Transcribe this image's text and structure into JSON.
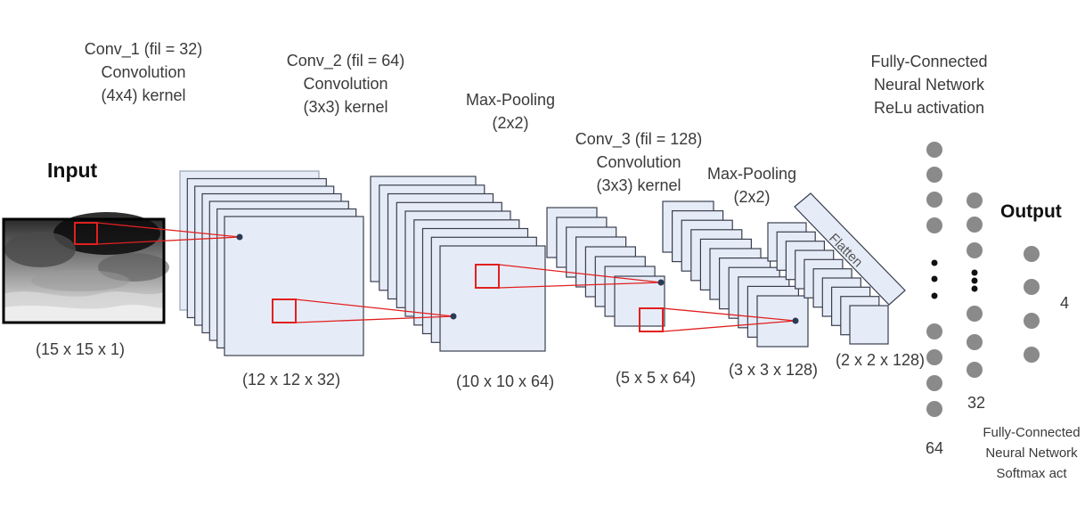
{
  "input": {
    "title": "Input",
    "dims": "(15 x 15 x 1)"
  },
  "conv1": {
    "line1": "Conv_1 (fil = 32)",
    "line2": "Convolution",
    "line3": "(4x4) kernel",
    "dims": "(12 x 12 x 32)"
  },
  "conv2": {
    "line1": "Conv_2 (fil = 64)",
    "line2": "Convolution",
    "line3": "(3x3) kernel",
    "dims": "(10 x 10 x 64)"
  },
  "pool1": {
    "line1": "Max-Pooling",
    "line2": "(2x2)",
    "dims": "(5 x 5 x 64)"
  },
  "conv3": {
    "line1": "Conv_3 (fil = 128)",
    "line2": "Convolution",
    "line3": "(3x3) kernel",
    "dims": "(3 x 3 x 128)"
  },
  "pool2": {
    "line1": "Max-Pooling",
    "line2": "(2x2)",
    "dims": "(2 x 2 x 128)"
  },
  "flatten": {
    "label": "Flatten"
  },
  "fc1": {
    "line1": "Fully-Connected",
    "line2": "Neural Network",
    "line3": "ReLu activation",
    "count": "64"
  },
  "fc2": {
    "count": "32"
  },
  "output": {
    "title": "Output",
    "count": "4",
    "line1": "Fully-Connected",
    "line2": "Neural Network",
    "line3": "Softmax act"
  },
  "colors": {
    "map_fill": "#e6ecf7",
    "map_stroke": "#3a3f4f",
    "connector": "#e02020",
    "node": "#8a8a8a",
    "dot": "#2b3a55"
  }
}
